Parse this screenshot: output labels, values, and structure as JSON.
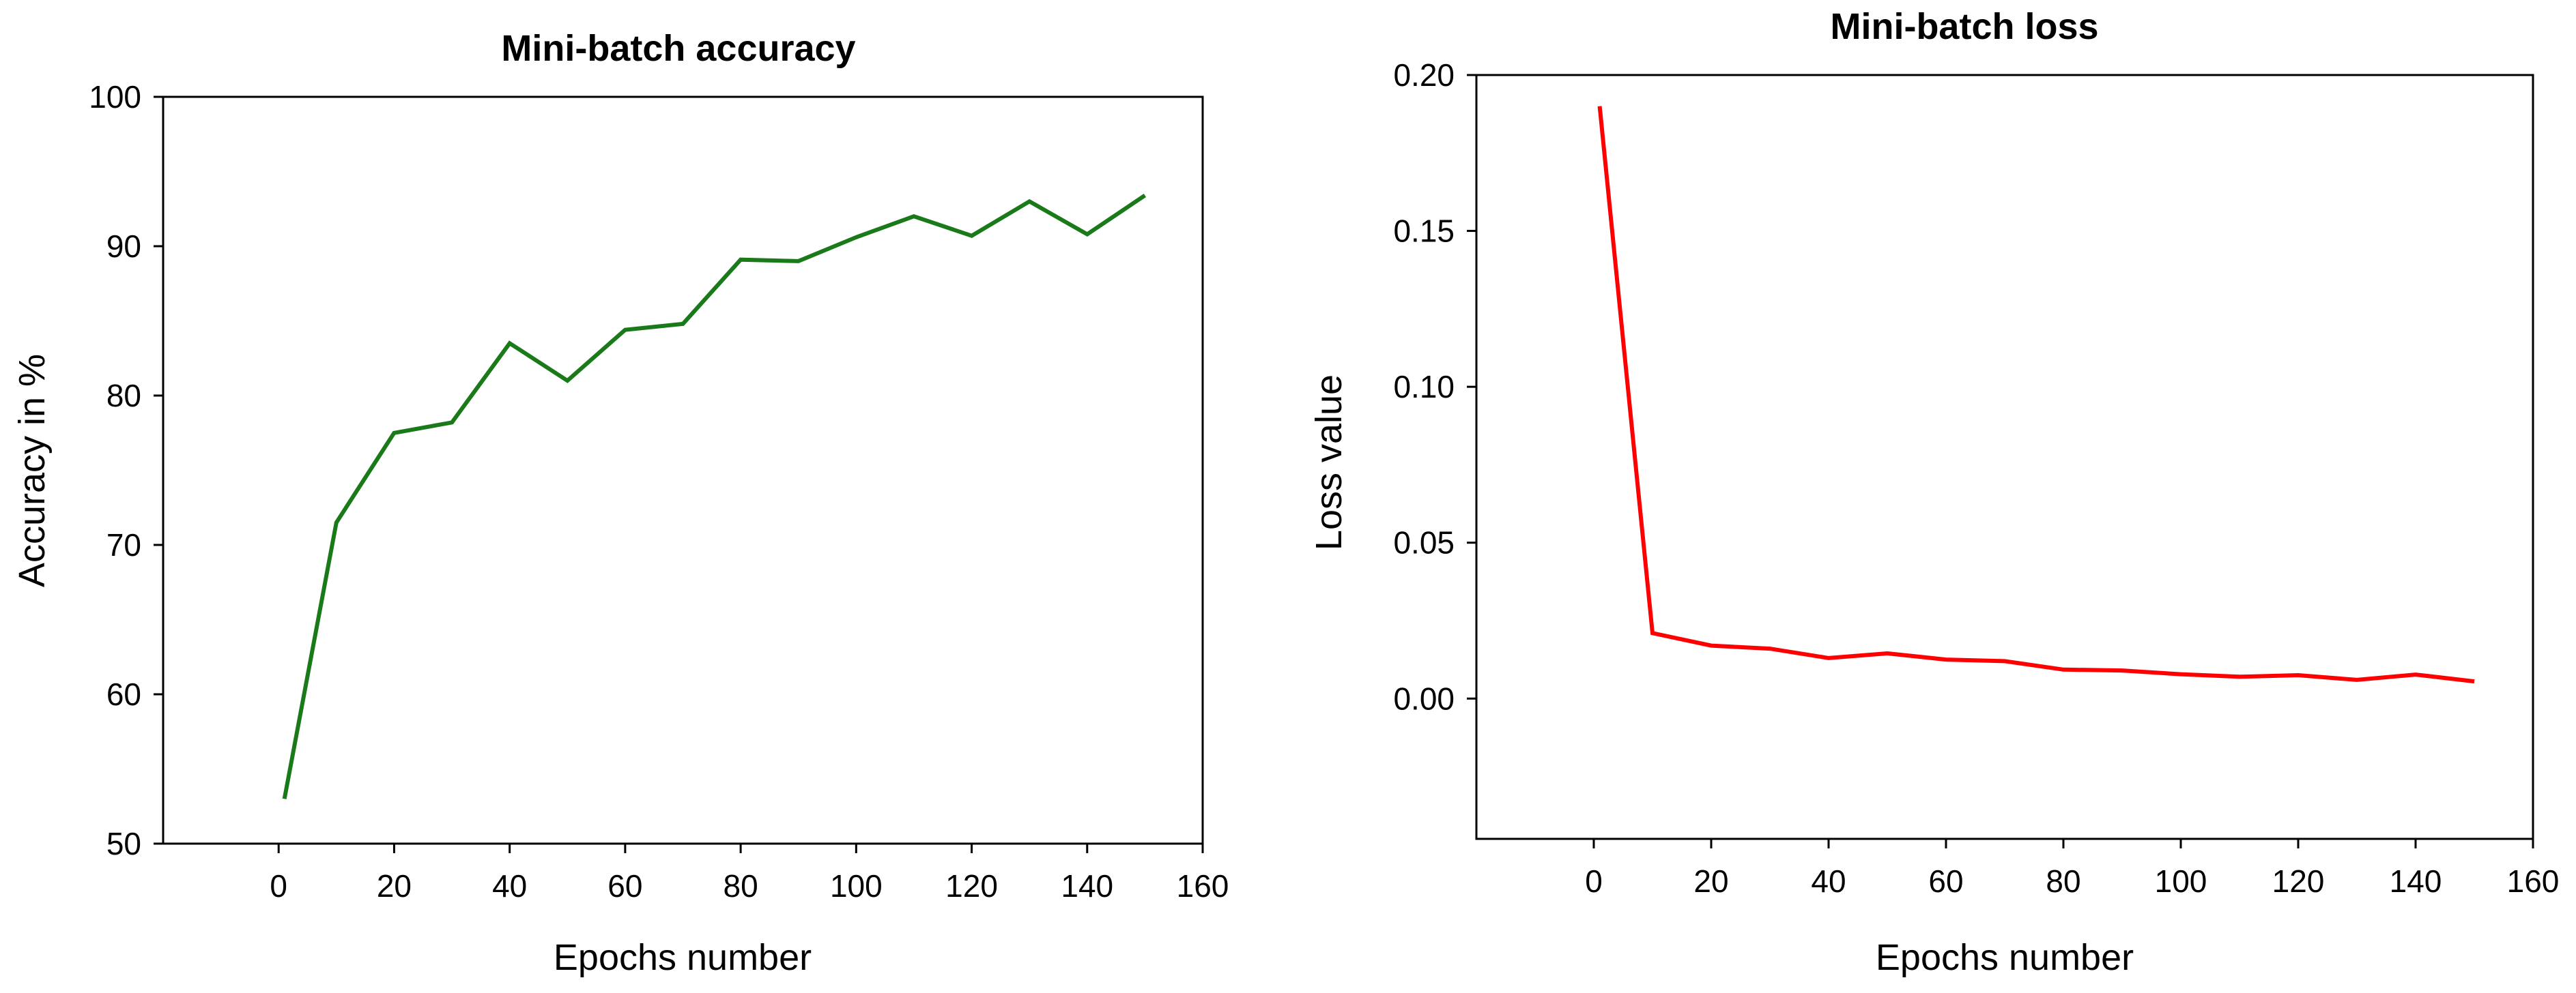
{
  "chart_data": [
    {
      "type": "line",
      "title": "Mini-batch accuracy",
      "xlabel": "Epochs number",
      "ylabel": "Accuracy in %",
      "xlim": [
        -20,
        160
      ],
      "ylim": [
        50,
        100
      ],
      "xticks": [
        0,
        20,
        40,
        60,
        80,
        100,
        120,
        140,
        160
      ],
      "yticks": [
        50,
        60,
        70,
        80,
        90,
        100
      ],
      "ytick_format": "0",
      "grid": false,
      "line_color": "#1a7a1a",
      "series": [
        {
          "x": [
            1,
            10,
            20,
            30,
            40,
            50,
            60,
            70,
            80,
            90,
            100,
            110,
            120,
            130,
            140,
            150
          ],
          "values": [
            53.0,
            71.5,
            77.5,
            78.2,
            83.5,
            81.0,
            84.4,
            84.8,
            89.1,
            89.0,
            90.6,
            92.0,
            90.7,
            93.0,
            90.8,
            93.4
          ]
        }
      ]
    },
    {
      "type": "line",
      "title": "Mini-batch loss",
      "xlabel": "Epochs number",
      "ylabel": "Loss value",
      "xlim": [
        -20,
        160
      ],
      "ylim": [
        -0.045,
        0.2
      ],
      "xticks": [
        0,
        20,
        40,
        60,
        80,
        100,
        120,
        140,
        160
      ],
      "yticks": [
        0.0,
        0.05,
        0.1,
        0.15,
        0.2
      ],
      "ytick_format": "0.00",
      "grid": false,
      "line_color": "#ff0000",
      "series": [
        {
          "x": [
            1,
            10,
            20,
            30,
            40,
            50,
            60,
            70,
            80,
            90,
            100,
            110,
            120,
            130,
            140,
            150
          ],
          "values": [
            0.19,
            0.021,
            0.017,
            0.016,
            0.013,
            0.0145,
            0.0125,
            0.012,
            0.0093,
            0.009,
            0.0078,
            0.007,
            0.0075,
            0.006,
            0.0077,
            0.0055
          ]
        }
      ]
    }
  ]
}
